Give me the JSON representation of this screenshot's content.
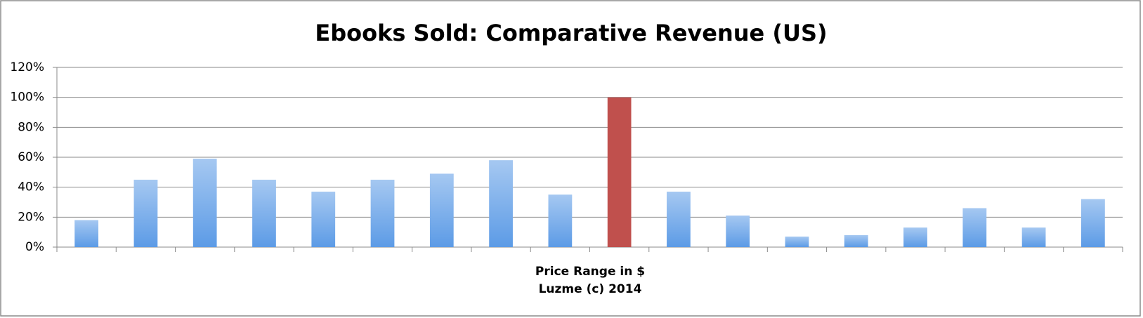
{
  "chart_data": {
    "type": "bar",
    "title": "Ebooks Sold: Comparative Revenue (US)",
    "x_label": [
      "Price Range in $",
      "Luzme (c) 2014"
    ],
    "categories": [
      null,
      null,
      null,
      null,
      null,
      null,
      null,
      null,
      null,
      null,
      null,
      null,
      null,
      null,
      null,
      null,
      null,
      null
    ],
    "values": [
      18,
      45,
      59,
      45,
      37,
      45,
      49,
      58,
      35,
      100,
      37,
      21,
      7,
      8,
      13,
      26,
      13,
      32
    ],
    "colors": [
      "#5c9be6",
      "#5c9be6",
      "#5c9be6",
      "#5c9be6",
      "#5c9be6",
      "#5c9be6",
      "#5c9be6",
      "#5c9be6",
      "#5c9be6",
      "#c0504d",
      "#5c9be6",
      "#5c9be6",
      "#5c9be6",
      "#5c9be6",
      "#5c9be6",
      "#5c9be6",
      "#5c9be6",
      "#5c9be6"
    ],
    "ylim": [
      0,
      120
    ],
    "yticks": [
      {
        "value": 0,
        "label": "0%"
      },
      {
        "value": 20,
        "label": "20%"
      },
      {
        "value": 40,
        "label": "40%"
      },
      {
        "value": 60,
        "label": "60%"
      },
      {
        "value": 80,
        "label": "80%"
      },
      {
        "value": 100,
        "label": "100%"
      },
      {
        "value": 120,
        "label": "120%"
      }
    ],
    "grid": true
  }
}
